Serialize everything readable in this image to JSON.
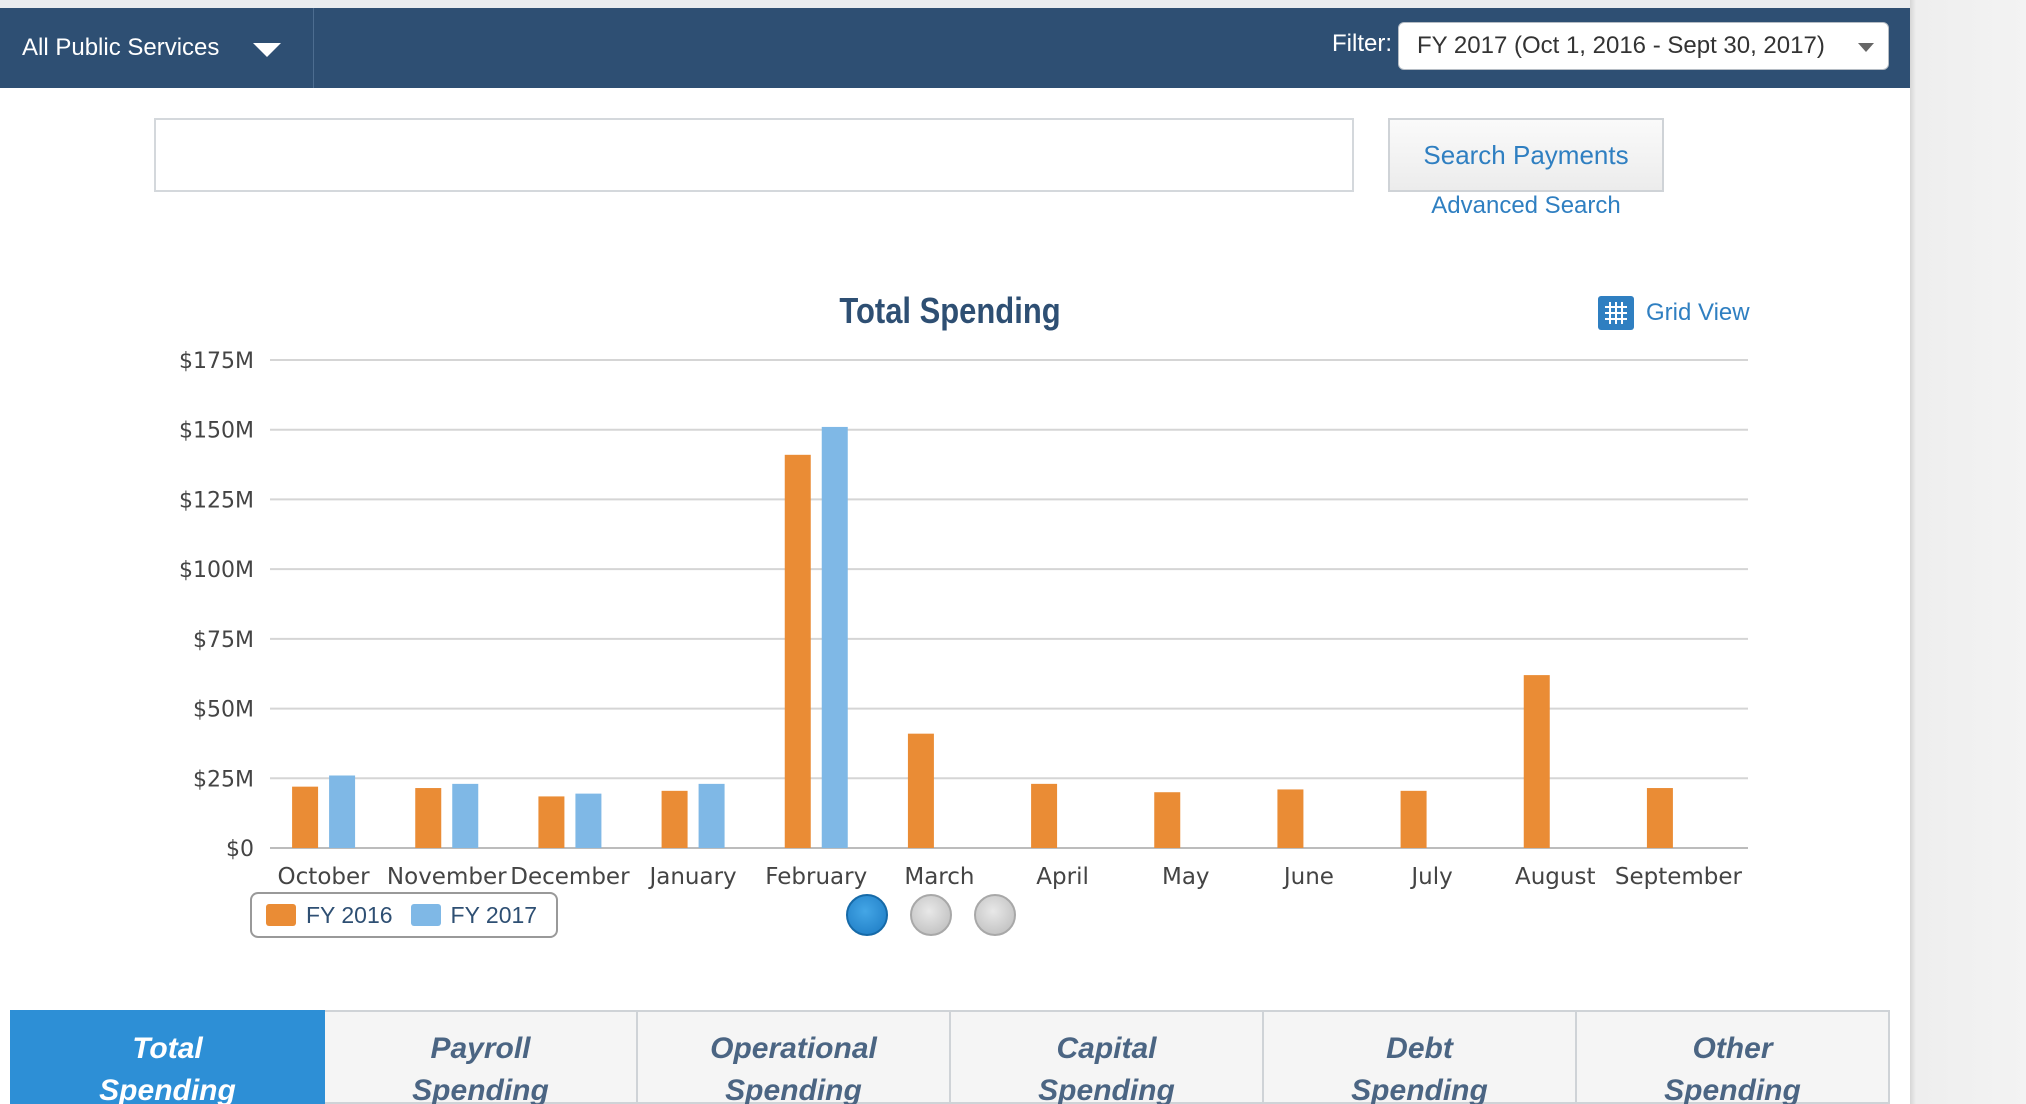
{
  "header": {
    "service_label": "All Public Services",
    "filter_label": "Filter:",
    "filter_value": "FY 2017 (Oct 1, 2016 - Sept 30, 2017)"
  },
  "search": {
    "placeholder": "",
    "button_label": "Search Payments",
    "advanced_label": "Advanced Search"
  },
  "grid_view_label": "Grid View",
  "colors": {
    "fy2016": "#ea8c35",
    "fy2017": "#7fb8e6",
    "accent": "#2f7fc1",
    "nav": "#2e4f73"
  },
  "chart_data": {
    "type": "bar",
    "title": "Total Spending",
    "xlabel": "",
    "ylabel": "",
    "categories": [
      "October",
      "November",
      "December",
      "January",
      "February",
      "March",
      "April",
      "May",
      "June",
      "July",
      "August",
      "September"
    ],
    "series": [
      {
        "name": "FY 2016",
        "values": [
          22,
          21.5,
          18.5,
          20.5,
          141,
          41,
          23,
          20,
          21,
          20.5,
          62,
          21.5
        ]
      },
      {
        "name": "FY 2017",
        "values": [
          26,
          23,
          19.5,
          23,
          151,
          null,
          null,
          null,
          null,
          null,
          null,
          null
        ]
      }
    ],
    "y_ticks": [
      "$0",
      "$25M",
      "$50M",
      "$75M",
      "$100M",
      "$125M",
      "$150M",
      "$175M"
    ],
    "ylim": [
      0,
      175
    ],
    "grid": true,
    "legend_position": "bottom-left"
  },
  "pager": {
    "pages": 3,
    "active": 1
  },
  "tabs": [
    {
      "line1": "Total",
      "line2": "Spending",
      "active": true
    },
    {
      "line1": "Payroll",
      "line2": "Spending",
      "active": false
    },
    {
      "line1": "Operational",
      "line2": "Spending",
      "active": false
    },
    {
      "line1": "Capital",
      "line2": "Spending",
      "active": false
    },
    {
      "line1": "Debt",
      "line2": "Spending",
      "active": false
    },
    {
      "line1": "Other",
      "line2": "Spending",
      "active": false
    }
  ]
}
